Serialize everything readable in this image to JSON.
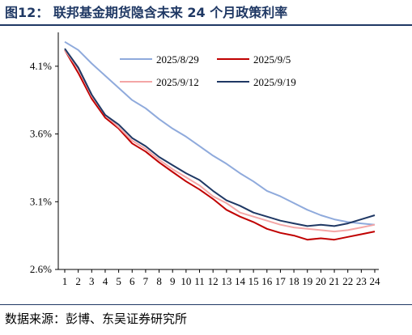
{
  "header": {
    "title": "图12：  联邦基金期货隐含未来 24 个月政策利率"
  },
  "footer": {
    "source": "数据来源：彭博、东吴证券研究所"
  },
  "chart_data": {
    "type": "line",
    "title": "",
    "xlabel": "",
    "ylabel": "",
    "x": [
      1,
      2,
      3,
      4,
      5,
      6,
      7,
      8,
      9,
      10,
      11,
      12,
      13,
      14,
      15,
      16,
      17,
      18,
      19,
      20,
      21,
      22,
      23,
      24
    ],
    "ylim": [
      2.6,
      4.35
    ],
    "yticks": [
      "2.6%",
      "3.1%",
      "3.6%",
      "4.1%"
    ],
    "ytick_values": [
      2.6,
      3.1,
      3.6,
      4.1
    ],
    "grid": false,
    "legend_placement": "top",
    "series": [
      {
        "name": "2025/8/29",
        "color": "#8faadc",
        "values": [
          4.28,
          4.22,
          4.12,
          4.03,
          3.94,
          3.85,
          3.79,
          3.71,
          3.64,
          3.58,
          3.51,
          3.44,
          3.38,
          3.31,
          3.25,
          3.18,
          3.14,
          3.09,
          3.04,
          3.0,
          2.97,
          2.95,
          2.94,
          2.93
        ]
      },
      {
        "name": "2025/9/5",
        "color": "#c00000",
        "values": [
          4.22,
          4.05,
          3.86,
          3.72,
          3.64,
          3.53,
          3.47,
          3.39,
          3.32,
          3.25,
          3.19,
          3.12,
          3.04,
          2.99,
          2.95,
          2.9,
          2.87,
          2.85,
          2.82,
          2.83,
          2.82,
          2.84,
          2.86,
          2.88
        ]
      },
      {
        "name": "2025/9/12",
        "color": "#f4a6a6",
        "values": [
          4.22,
          4.08,
          3.88,
          3.74,
          3.65,
          3.55,
          3.49,
          3.41,
          3.34,
          3.28,
          3.22,
          3.14,
          3.09,
          3.02,
          2.99,
          2.96,
          2.93,
          2.91,
          2.9,
          2.89,
          2.88,
          2.89,
          2.91,
          2.93
        ]
      },
      {
        "name": "2025/9/19",
        "color": "#1f3864",
        "values": [
          4.23,
          4.09,
          3.89,
          3.74,
          3.67,
          3.57,
          3.51,
          3.43,
          3.37,
          3.31,
          3.26,
          3.18,
          3.11,
          3.07,
          3.02,
          2.99,
          2.96,
          2.94,
          2.92,
          2.93,
          2.92,
          2.94,
          2.97,
          3.0
        ]
      }
    ]
  }
}
